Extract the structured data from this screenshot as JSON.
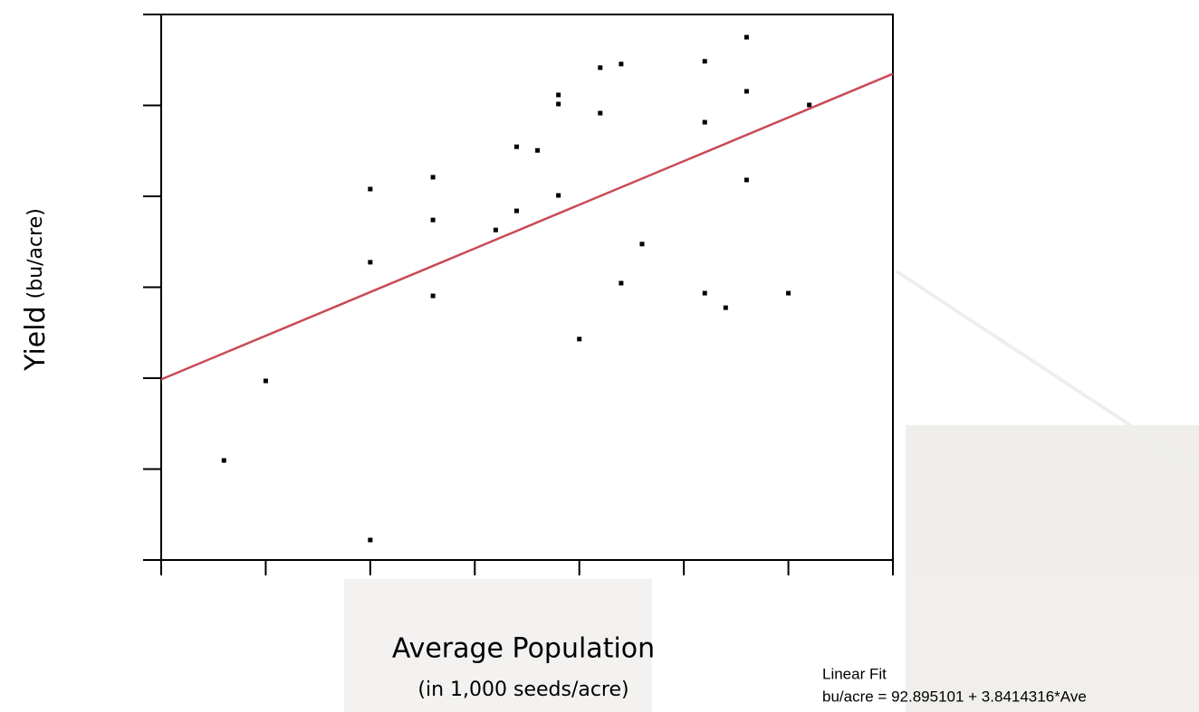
{
  "chart_data": {
    "type": "scatter",
    "x_label": "Average Population",
    "x_sublabel": "(in 1,000 seeds/acre)",
    "y_label": "Yield",
    "y_sublabel": "(bu/acre)",
    "xlim": [
      20,
      37.5
    ],
    "ylim": [
      130,
      250
    ],
    "xticks": [
      20,
      22.5,
      25,
      27.5,
      30,
      32.5,
      35,
      37.5
    ],
    "yticks": [
      130,
      150,
      170,
      190,
      210,
      230,
      250
    ],
    "color": "#000000",
    "x": [
      21.5,
      22.5,
      25.0,
      25.0,
      25.0,
      26.5,
      26.5,
      26.5,
      28.0,
      28.5,
      28.5,
      29.0,
      29.5,
      29.5,
      29.5,
      30.0,
      30.5,
      30.5,
      31.0,
      31.0,
      31.5,
      33.0,
      33.0,
      33.0,
      33.5,
      34.0,
      34.0,
      34.0,
      35.0,
      35.5
    ],
    "y": [
      151.9,
      169.4,
      134.4,
      195.5,
      211.6,
      214.2,
      204.8,
      188.1,
      202.6,
      206.8,
      220.9,
      220.1,
      232.3,
      230.3,
      210.2,
      178.6,
      238.3,
      228.3,
      239.1,
      190.9,
      199.5,
      239.7,
      226.3,
      188.7,
      185.5,
      245.0,
      233.1,
      213.6,
      188.7,
      230.1
    ],
    "fit": {
      "label": "Linear Fit",
      "equation": "bu/acre = 92.895101 + 3.8414316*Ave",
      "intercept": 92.895101,
      "slope": 3.8414316,
      "color": "#c94a55"
    }
  }
}
